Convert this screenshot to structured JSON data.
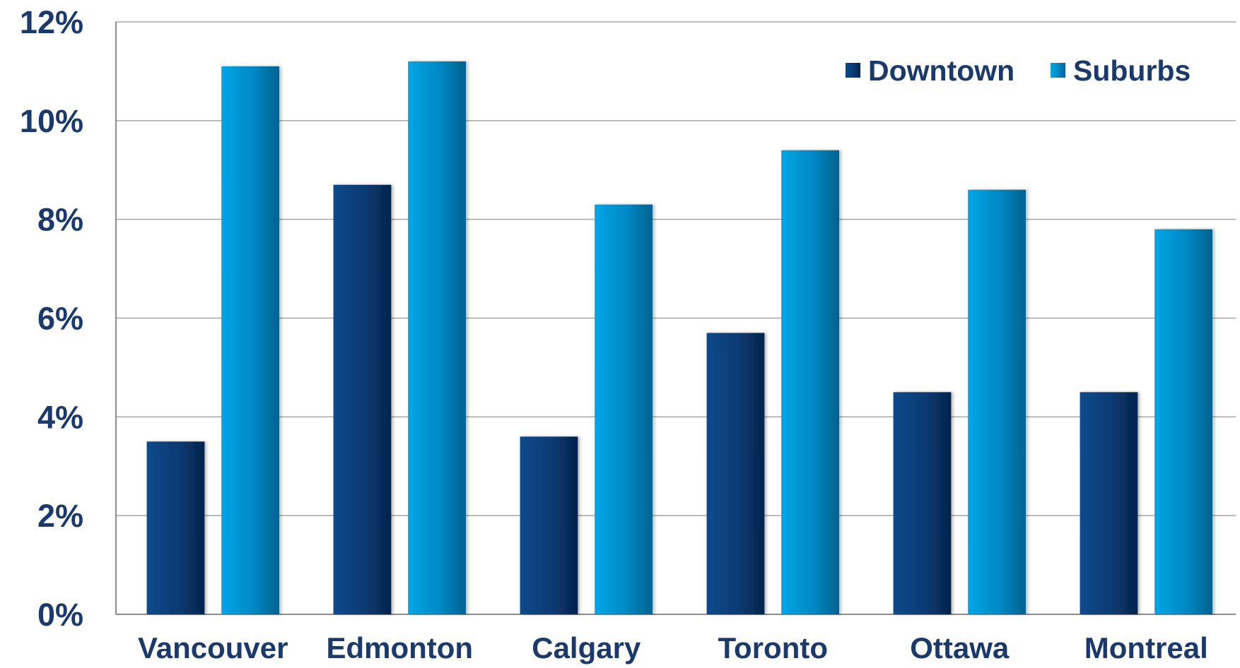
{
  "chart_data": {
    "type": "bar",
    "categories": [
      "Vancouver",
      "Edmonton",
      "Calgary",
      "Toronto",
      "Ottawa",
      "Montreal"
    ],
    "series": [
      {
        "name": "Downtown",
        "values": [
          3.5,
          8.7,
          3.6,
          5.7,
          4.5,
          4.5
        ],
        "color": "#0b3a73"
      },
      {
        "name": "Suburbs",
        "values": [
          11.1,
          11.2,
          8.3,
          9.4,
          8.6,
          7.8
        ],
        "color": "#0093d0"
      }
    ],
    "y_ticks": [
      "0%",
      "2%",
      "4%",
      "6%",
      "8%",
      "10%",
      "12%"
    ],
    "ylim": [
      0,
      12
    ],
    "grid": true,
    "legend_position": "top-right"
  }
}
